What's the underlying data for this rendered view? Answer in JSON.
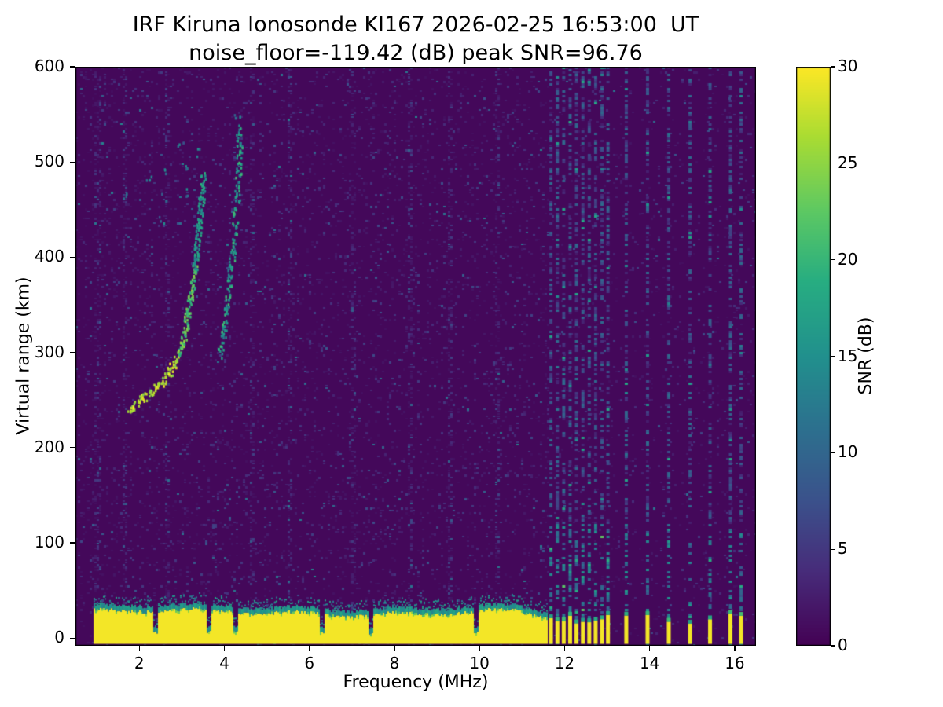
{
  "chart_data": {
    "type": "heatmap",
    "title": "IRF Kiruna Ionosonde KI167 2026-02-25 16:53:00  UT",
    "subtitle": "noise_floor=-119.42 (dB) peak SNR=96.76",
    "xlabel": "Frequency (MHz)",
    "ylabel": "Virtual range (km)",
    "colormap": "viridis",
    "stats": {
      "station": "IRF Kiruna Ionosonde KI167",
      "timestamp_ut": "2026-02-25 16:53:00",
      "noise_floor_db": -119.42,
      "peak_snr_db": 96.76
    },
    "axes": {
      "x_range_mhz": [
        0.5,
        16.5
      ],
      "y_range_km": [
        -8,
        600
      ],
      "x_ticks": [
        2,
        4,
        6,
        8,
        10,
        12,
        14,
        16
      ],
      "y_ticks": [
        0,
        100,
        200,
        300,
        400,
        500,
        600
      ]
    },
    "colorbar": {
      "label": "SNR (dB)",
      "range_db": [
        0,
        30
      ],
      "ticks": [
        0,
        5,
        10,
        15,
        20,
        25,
        30
      ]
    },
    "features": {
      "background": {
        "base_snr_db": 1,
        "speckle_density_left": 0.1,
        "speckle_density_right": 0.05,
        "right_start_mhz": 11.6
      },
      "noisy_columns_mhz": [
        1.0,
        1.62,
        2.62,
        4.62,
        5.52,
        7.0,
        8.35,
        9.3,
        10.4
      ],
      "interference_stripes_mhz": [
        11.68,
        11.83,
        11.98,
        12.13,
        12.28,
        12.43,
        12.58,
        12.73,
        12.88,
        13.02,
        13.45,
        13.95,
        14.45,
        14.95,
        15.42,
        15.9,
        16.15
      ],
      "clutter": {
        "freq_start_mhz": 0.94,
        "solid_freq_end_mhz": 11.6,
        "bottom_km": -6,
        "top_km": 27,
        "fringe_km": 10,
        "notches_mhz": [
          2.36,
          3.62,
          4.25,
          6.28,
          7.42,
          9.9
        ]
      },
      "echo_traces": [
        {
          "name": "ionospheric trace main",
          "intensity": "bright",
          "points_mhz_km": [
            [
              1.72,
              240
            ],
            [
              1.9,
              247
            ],
            [
              2.1,
              254
            ],
            [
              2.3,
              261
            ],
            [
              2.5,
              270
            ],
            [
              2.7,
              281
            ],
            [
              2.85,
              295
            ],
            [
              3.0,
              312
            ],
            [
              3.1,
              332
            ],
            [
              3.2,
              358
            ],
            [
              3.3,
              392
            ],
            [
              3.38,
              428
            ],
            [
              3.45,
              460
            ],
            [
              3.5,
              485
            ]
          ]
        },
        {
          "name": "ionospheric trace second branch",
          "intensity": "medium",
          "points_mhz_km": [
            [
              3.88,
              298
            ],
            [
              3.97,
              322
            ],
            [
              4.05,
              350
            ],
            [
              4.12,
              378
            ],
            [
              4.18,
              405
            ],
            [
              4.24,
              435
            ],
            [
              4.29,
              465
            ],
            [
              4.33,
              492
            ],
            [
              4.35,
              515
            ],
            [
              4.3,
              538
            ]
          ]
        },
        {
          "name": "faint scatter",
          "intensity": "faint",
          "points_mhz_km": [
            [
              2.5,
              440
            ],
            [
              2.55,
              465
            ],
            [
              2.6,
              490
            ],
            [
              3.05,
              470
            ],
            [
              3.08,
              492
            ],
            [
              2.95,
              520
            ],
            [
              4.28,
              552
            ],
            [
              2.2,
              480
            ],
            [
              1.62,
              468
            ],
            [
              3.35,
              510
            ]
          ]
        }
      ]
    }
  }
}
